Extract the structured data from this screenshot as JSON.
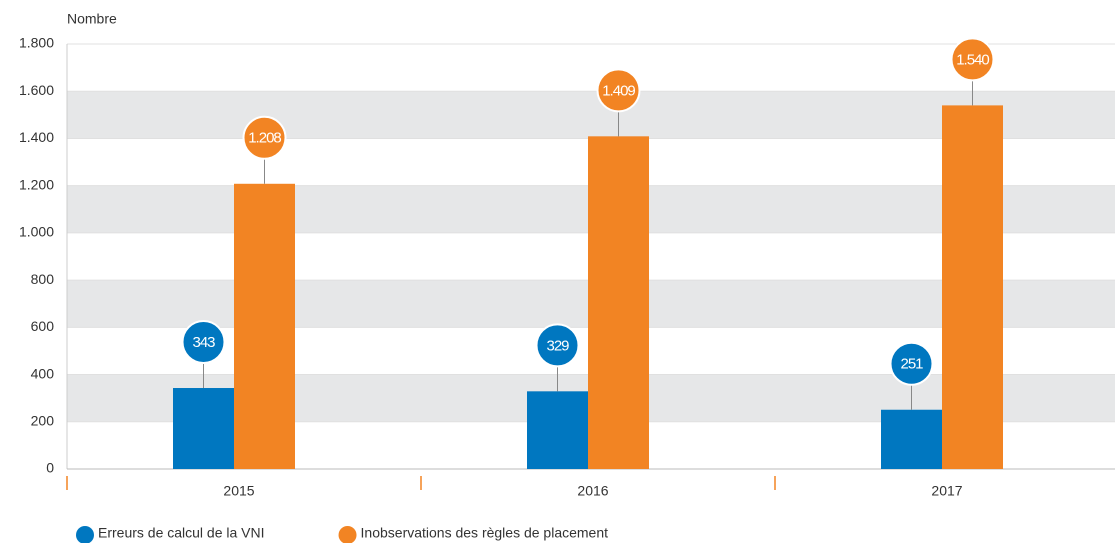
{
  "chart_data": {
    "type": "bar",
    "y_axis_label": "Nombre",
    "categories": [
      "2015",
      "2016",
      "2017"
    ],
    "series": [
      {
        "name": "Erreurs de calcul de la VNI",
        "color": "#0077c0",
        "values": [
          343,
          329,
          251
        ]
      },
      {
        "name": "Inobservations des règles de placement",
        "color": "#f28423",
        "values": [
          1208,
          1409,
          1540
        ],
        "value_labels": [
          "1.208",
          "1.409",
          "1.540"
        ]
      }
    ],
    "ylim": [
      0,
      1800
    ],
    "yticks": [
      0,
      200,
      400,
      600,
      800,
      {
        "value": 1000,
        "label": "1.000"
      },
      {
        "value": 1200,
        "label": "1.200"
      },
      {
        "value": 1400,
        "label": "1.400"
      },
      {
        "value": 1600,
        "label": "1.600"
      },
      {
        "value": 1800,
        "label": "1.800"
      }
    ],
    "bands": true,
    "legend": "bottom-left"
  }
}
